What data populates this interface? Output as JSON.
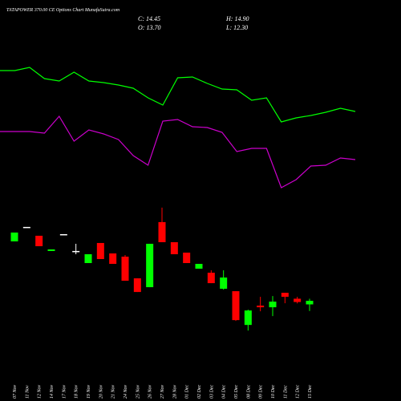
{
  "chart_data": {
    "type": "candlestick",
    "title": "TATAPOWER 370.00 CE Options  Chart MunafaSutra.com",
    "ohlc_labels": {
      "close": "C: 14.45",
      "high": "H: 14.90",
      "open": "O: 13.70",
      "low": "L: 12.30"
    },
    "categories": [
      "07 Nov",
      "11 Nov",
      "12 Nov",
      "14 Nov",
      "17 Nov",
      "18 Nov",
      "19 Nov",
      "20 Nov",
      "21 Nov",
      "24 Nov",
      "25 Nov",
      "26 Nov",
      "27 Nov",
      "28 Nov",
      "01 Dec",
      "02 Dec",
      "03 Dec",
      "04 Dec",
      "05 Dec",
      "08 Dec",
      "09 Dec",
      "10 Dec",
      "11 Dec",
      "12 Dec",
      "15 Dec"
    ],
    "open": [
      27.03,
      30.09,
      28.22,
      25.0,
      28.56,
      25.0,
      22.44,
      26.69,
      24.48,
      23.8,
      19.21,
      17.34,
      31.11,
      26.86,
      24.65,
      21.25,
      20.4,
      17.0,
      16.49,
      9.35,
      13.43,
      13.09,
      16.15,
      14.9,
      13.7
    ],
    "high": [
      28.9,
      30.09,
      28.22,
      25.33,
      28.56,
      26.52,
      24.31,
      26.69,
      24.48,
      24.14,
      19.21,
      26.52,
      34.17,
      26.86,
      24.65,
      22.27,
      20.91,
      20.91,
      16.49,
      12.58,
      15.3,
      15.47,
      16.15,
      15.3,
      14.9
    ],
    "low": [
      27.03,
      30.09,
      26.01,
      25.0,
      28.56,
      24.31,
      22.44,
      23.29,
      22.27,
      18.7,
      16.32,
      17.34,
      26.86,
      24.31,
      22.44,
      21.25,
      18.19,
      16.83,
      10.2,
      8.16,
      12.24,
      11.22,
      13.94,
      13.9,
      12.3
    ],
    "close": [
      28.9,
      30.09,
      26.01,
      25.33,
      28.56,
      25.0,
      24.31,
      23.29,
      22.27,
      18.7,
      16.32,
      26.52,
      26.86,
      24.31,
      22.44,
      22.27,
      18.19,
      19.38,
      10.37,
      12.41,
      13.09,
      14.28,
      15.3,
      14.2,
      14.45
    ],
    "up_color": "#00ff00",
    "down_color": "#ff0000",
    "flat_color": "#ffffff",
    "ylim": [
      7,
      35
    ],
    "y2lim": [
      0,
      100
    ],
    "series": [
      {
        "color": "#00ff00",
        "axis": "y2",
        "values": [
          86,
          86,
          88,
          81,
          79.5,
          85,
          79.5,
          78.5,
          77,
          75,
          69,
          64.5,
          81.5,
          82,
          78,
          74.5,
          74,
          67.5,
          69,
          54,
          56.5,
          58,
          60,
          62.5,
          60.5
        ]
      },
      {
        "color": "#cc00cc",
        "axis": "y2",
        "values": [
          48,
          48,
          48,
          47,
          57.5,
          42,
          49,
          46.5,
          43,
          33,
          27,
          54.5,
          55.5,
          51,
          50.5,
          47.5,
          35.5,
          37.5,
          37.5,
          13,
          18,
          26.5,
          27,
          31.5,
          30.5
        ]
      }
    ]
  }
}
